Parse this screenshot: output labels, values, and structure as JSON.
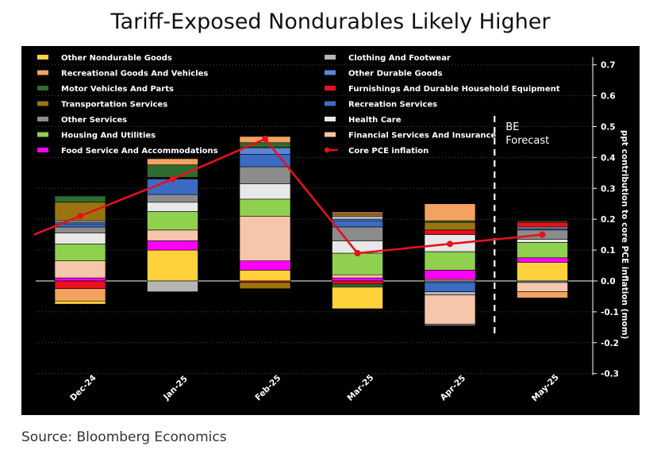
{
  "title": "Tariff-Exposed Nondurables Likely Higher",
  "source": "Source: Bloomberg Economics",
  "chart_data": {
    "type": "bar",
    "stacked": true,
    "categories": [
      "Dec-24",
      "Jan-25",
      "Feb-25",
      "Mar-25",
      "Apr-25",
      "May-25"
    ],
    "ylabel": "ppt contribution to core PCE inflation (mom)",
    "ylim": [
      -0.3,
      0.7
    ],
    "yticks": [
      -0.3,
      -0.2,
      -0.1,
      0.0,
      0.1,
      0.2,
      0.3,
      0.4,
      0.5,
      0.6,
      0.7
    ],
    "ytick_labels": [
      "-0.3",
      "-0.2",
      "-0.1",
      "0.0",
      "0.1",
      "0.2",
      "0.3",
      "0.4",
      "0.5",
      "0.6",
      "0.7"
    ],
    "y_axis_side": "right",
    "grid": "dotted horizontal",
    "legend_position": "top",
    "annotation": {
      "lines": [
        "BE",
        "Forecast"
      ],
      "divider_between": [
        "Apr-25",
        "May-25"
      ]
    },
    "series": [
      {
        "name": "Food Service And Accommodations",
        "color": "#ff00ff",
        "values": [
          0.01,
          0.03,
          0.03,
          0.01,
          0.03,
          0.015
        ]
      },
      {
        "name": "Other Nondurable Goods",
        "color": "#ffd23c",
        "values": [
          -0.01,
          0.1,
          0.035,
          -0.07,
          0.005,
          0.06
        ]
      },
      {
        "name": "Recreational Goods And Vehicles",
        "color": "#f4a261",
        "values": [
          -0.04,
          0.02,
          0.02,
          0.005,
          0.055,
          -0.02
        ]
      },
      {
        "name": "Motor Vehicles And Parts",
        "color": "#2e6b2e",
        "values": [
          0.02,
          0.04,
          0.015,
          -0.01,
          0.005,
          0.003
        ]
      },
      {
        "name": "Transportation Services",
        "color": "#9a7410",
        "values": [
          0.06,
          0.002,
          -0.02,
          0.008,
          0.025,
          0.003
        ]
      },
      {
        "name": "Other Services",
        "color": "#8c8c8c",
        "values": [
          0.02,
          0.025,
          0.055,
          0.045,
          -0.005,
          0.03
        ]
      },
      {
        "name": "Housing And Utilities",
        "color": "#8fd14f",
        "values": [
          0.055,
          0.06,
          0.055,
          0.07,
          0.06,
          0.05
        ]
      },
      {
        "name": "Clothing And Footwear",
        "color": "#b5b5b5",
        "values": [
          0.005,
          -0.035,
          0.003,
          0.01,
          -0.01,
          0.005
        ]
      },
      {
        "name": "Other Durable Goods",
        "color": "#5a86d6",
        "values": [
          0.005,
          0.002,
          0.02,
          0.005,
          -0.005,
          -0.005
        ]
      },
      {
        "name": "Furnishings And Durable Household Equipment",
        "color": "#e8101e",
        "values": [
          -0.025,
          0.002,
          -0.005,
          -0.01,
          0.015,
          0.015
        ]
      },
      {
        "name": "Recreation Services",
        "color": "#3c6bc4",
        "values": [
          0.01,
          0.05,
          0.04,
          0.02,
          -0.03,
          0.005
        ]
      },
      {
        "name": "Health Care",
        "color": "#e8e8e8",
        "values": [
          0.035,
          0.03,
          0.05,
          0.04,
          0.055,
          0.01
        ]
      },
      {
        "name": "Financial Services And Insurance",
        "color": "#f5c6aa",
        "values": [
          0.055,
          0.035,
          0.145,
          0.01,
          -0.095,
          -0.03
        ]
      }
    ],
    "order_positive": [
      "Other Nondurable Goods",
      "Food Service And Accommodations",
      "Financial Services And Insurance",
      "Housing And Utilities",
      "Health Care",
      "Other Services",
      "Recreation Services",
      "Other Durable Goods",
      "Clothing And Footwear",
      "Furnishings And Durable Household Equipment",
      "Transportation Services",
      "Motor Vehicles And Parts",
      "Recreational Goods And Vehicles"
    ],
    "order_negative": [
      "Other Durable Goods",
      "Furnishings And Durable Household Equipment",
      "Recreation Services",
      "Transportation Services",
      "Motor Vehicles And Parts",
      "Clothing And Footwear",
      "Financial Services And Insurance",
      "Recreational Goods And Vehicles",
      "Other Nondurable Goods",
      "Other Services",
      "Health Care",
      "Housing And Utilities",
      "Food Service And Accommodations"
    ],
    "line_series": {
      "name": "Core PCE inflation",
      "color": "#e3121b",
      "values": [
        0.21,
        0.33,
        0.46,
        0.09,
        0.12,
        0.15
      ],
      "x_extent": [
        -0.5,
        5
      ]
    },
    "legend_order": [
      "Other Nondurable Goods",
      "Clothing And Footwear",
      "Recreational Goods And Vehicles",
      "Other Durable Goods",
      "Motor Vehicles And Parts",
      "Furnishings And Durable Household Equipment",
      "Transportation Services",
      "Recreation Services",
      "Other Services",
      "Health Care",
      "Housing And Utilities",
      "Financial Services And Insurance",
      "Food Service And Accommodations",
      "Core PCE inflation"
    ]
  }
}
